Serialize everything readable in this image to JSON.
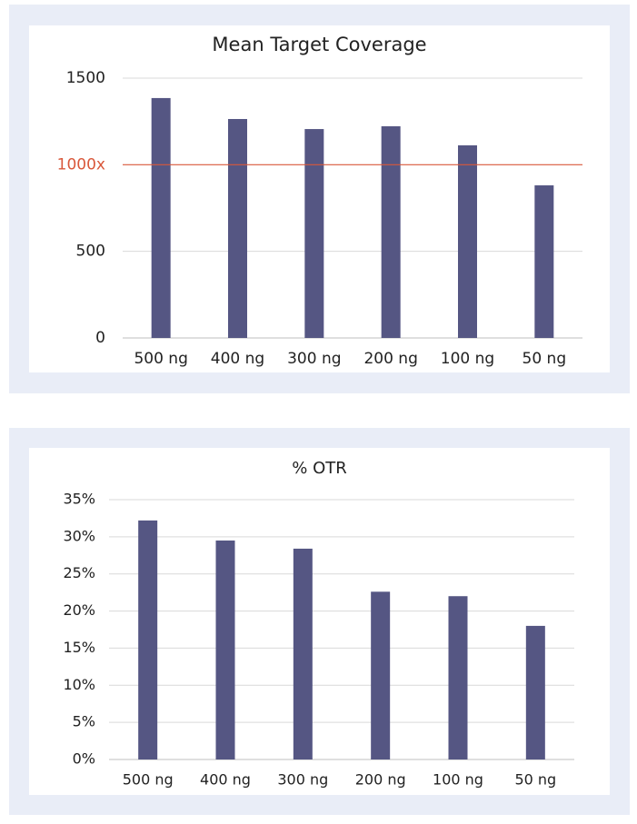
{
  "chart_data": [
    {
      "type": "bar",
      "title": "Mean Target Coverage",
      "categories": [
        "500 ng",
        "400 ng",
        "300 ng",
        "200 ng",
        "100 ng",
        "50 ng"
      ],
      "values": [
        1385,
        1264,
        1206,
        1222,
        1112,
        881
      ],
      "color": "#555683",
      "ylim": [
        0,
        1500
      ],
      "yticks": [
        0,
        500,
        {
          "value": 1000,
          "label": "1000x"
        },
        1500
      ],
      "grid": true,
      "reference_line": {
        "value": 1000,
        "color": "#d9583b"
      }
    },
    {
      "type": "bar",
      "title": "% OTR",
      "categories": [
        "500 ng",
        "400 ng",
        "300 ng",
        "200 ng",
        "100 ng",
        "50 ng"
      ],
      "values": [
        32.2,
        29.5,
        28.4,
        22.6,
        22.0,
        18.0
      ],
      "color": "#555683",
      "ylim": [
        0,
        35
      ],
      "yticks": [
        {
          "value": 0,
          "label": "0%"
        },
        {
          "value": 5,
          "label": "5%"
        },
        {
          "value": 10,
          "label": "10%"
        },
        {
          "value": 15,
          "label": "15%"
        },
        {
          "value": 20,
          "label": "20%"
        },
        {
          "value": 25,
          "label": "25%"
        },
        {
          "value": 30,
          "label": "30%"
        },
        {
          "value": 35,
          "label": "35%"
        }
      ],
      "grid": true
    }
  ]
}
